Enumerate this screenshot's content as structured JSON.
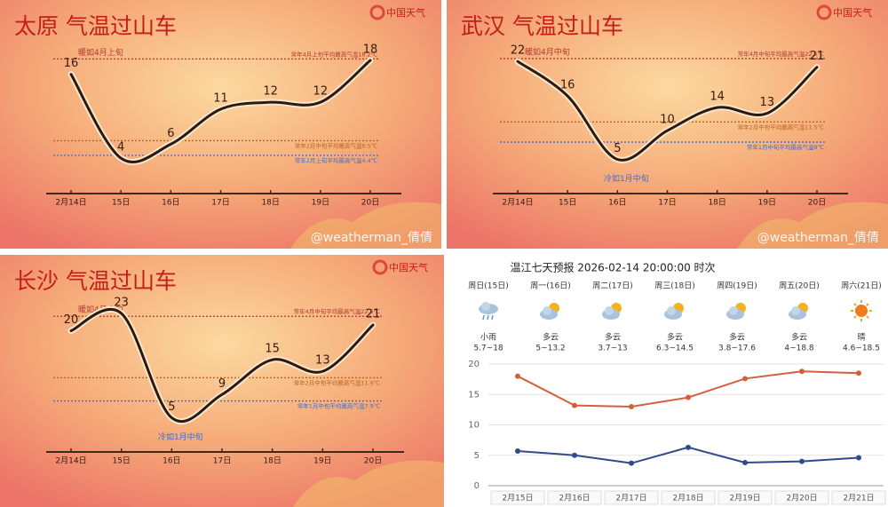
{
  "chart_data": [
    {
      "type": "line",
      "title": "太原  气温过山车",
      "logo": "中国天气",
      "watermark": "@weatherman_倩倩",
      "categories": [
        "2月14日",
        "15日",
        "16日",
        "17日",
        "18日",
        "19日",
        "20日"
      ],
      "values": [
        16,
        4,
        6,
        11,
        12,
        12,
        18
      ],
      "color": "#2b1a12",
      "reference_lines": [
        {
          "value": 18.2,
          "label": "常年4月上旬平均最高气温18.2℃",
          "note": "暖如4月上旬",
          "color": "#b03a2e"
        },
        {
          "value": 6.5,
          "label": "常年2月中旬平均最高气温6.5℃",
          "color": "#b8651e"
        },
        {
          "value": 4.4,
          "label": "常年2月上旬平均最高气温4.4℃",
          "color": "#3b6fd6"
        }
      ]
    },
    {
      "type": "line",
      "title": "武汉  气温过山车",
      "logo": "中国天气",
      "watermark": "@weatherman_倩倩",
      "categories": [
        "2月14日",
        "15日",
        "16日",
        "17日",
        "18日",
        "19日",
        "20日"
      ],
      "values": [
        22,
        16,
        5,
        10,
        14,
        13,
        21
      ],
      "color": "#2b1a12",
      "reference_lines": [
        {
          "value": 22.5,
          "label": "常年4月中旬平均最高气温22.5℃",
          "note": "暖如4月中旬",
          "color": "#b03a2e"
        },
        {
          "value": 11.5,
          "label": "常年2月中旬平均最高气温11.5℃",
          "color": "#b8651e"
        },
        {
          "value": 8,
          "label": "常年1月中旬平均最高气温8℃",
          "note": "冷如1月中旬",
          "color": "#3b6fd6"
        }
      ]
    },
    {
      "type": "line",
      "title": "长沙  气温过山车",
      "logo": "中国天气",
      "categories": [
        "2月14日",
        "15日",
        "16日",
        "17日",
        "18日",
        "19日",
        "20日"
      ],
      "values": [
        20,
        23,
        5,
        9,
        15,
        13,
        21
      ],
      "color": "#2b1a12",
      "reference_lines": [
        {
          "value": 22.5,
          "label": "常年4月中旬平均最高气温22.5℃",
          "note": "暖如4月中旬",
          "color": "#b03a2e"
        },
        {
          "value": 11.9,
          "label": "常年2月中旬平均最高气温11.9℃",
          "color": "#b8651e"
        },
        {
          "value": 7.9,
          "label": "常年1月中旬平均最高气温7.9℃",
          "note": "冷如1月中旬",
          "color": "#3b6fd6"
        }
      ]
    },
    {
      "type": "forecast",
      "title": "温江七天预报 2026-02-14 20:00:00 时次",
      "days": [
        "周日(15日)",
        "周一(16日)",
        "周二(17日)",
        "周三(18日)",
        "周四(19日)",
        "周五(20日)",
        "周六(21日)"
      ],
      "weather": [
        "小雨",
        "多云",
        "多云",
        "多云",
        "多云",
        "多云",
        "晴"
      ],
      "ranges": [
        "5.7~18",
        "5~13.2",
        "3.7~13",
        "6.3~14.5",
        "3.8~17.6",
        "4~18.8",
        "4.6~18.5"
      ],
      "categories": [
        "2月15日",
        "2月16日",
        "2月17日",
        "2月18日",
        "2月19日",
        "2月20日",
        "2月21日"
      ],
      "series": [
        {
          "color": "#d2603e",
          "values": [
            18,
            13.2,
            13,
            14.5,
            17.6,
            18.8,
            18.5
          ]
        },
        {
          "color": "#2f4b8c",
          "values": [
            5.7,
            5,
            3.7,
            6.3,
            3.8,
            4,
            4.6
          ]
        }
      ],
      "ylim": [
        0,
        20
      ],
      "yticks": [
        0,
        5,
        10,
        15,
        20
      ],
      "grid": true
    }
  ]
}
